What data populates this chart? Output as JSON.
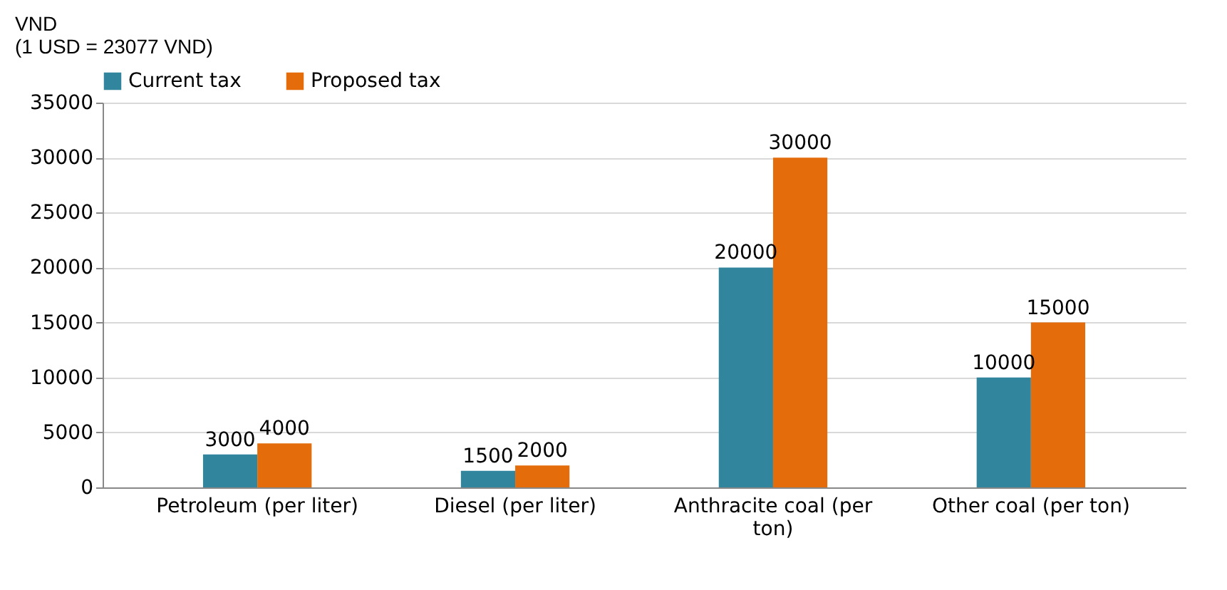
{
  "chart_data": {
    "type": "bar",
    "ylabel": "VND\n(1 USD = 23077 VND)",
    "categories": [
      "Petroleum (per liter)",
      "Diesel (per liter)",
      "Anthracite coal (per ton)",
      "Other coal (per ton)"
    ],
    "series": [
      {
        "name": "Current tax",
        "color": "#31859c",
        "values": [
          3000,
          1500,
          20000,
          10000
        ]
      },
      {
        "name": "Proposed tax",
        "color": "#e46c0a",
        "values": [
          4000,
          2000,
          30000,
          15000
        ]
      }
    ],
    "ylim": [
      0,
      35000
    ],
    "yticks": [
      0,
      5000,
      10000,
      15000,
      20000,
      25000,
      30000,
      35000
    ],
    "grid": "y",
    "legend": "top",
    "data_labels": true
  }
}
